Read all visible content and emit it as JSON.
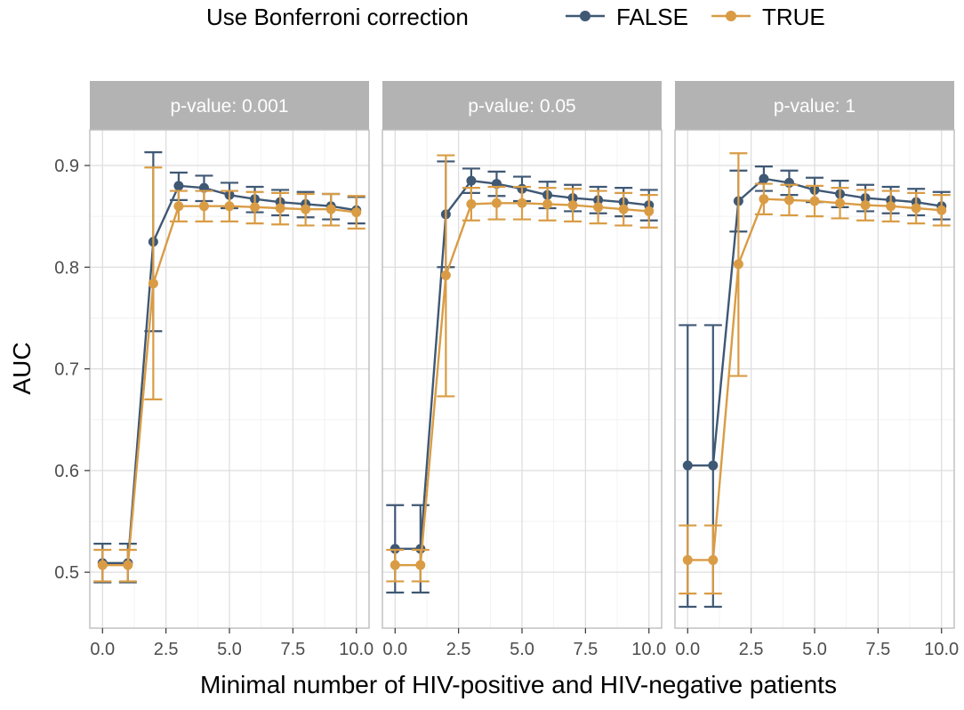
{
  "chart_data": {
    "type": "line",
    "legend": {
      "title": "Use Bonferroni correction",
      "position": "top",
      "entries": [
        {
          "name": "FALSE",
          "color": "#3f5874"
        },
        {
          "name": "TRUE",
          "color": "#d99c45"
        }
      ]
    },
    "xlabel": "Minimal number of HIV-positive and HIV-negative patients",
    "ylabel": "AUC",
    "xlim": [
      -0.5,
      10.5
    ],
    "ylim": [
      0.445,
      0.935
    ],
    "x_ticks": [
      0,
      2.5,
      5,
      7.5,
      10
    ],
    "x_tick_labels": [
      "0.0",
      "2.5",
      "5.0",
      "7.5",
      "10.0"
    ],
    "y_ticks": [
      0.5,
      0.6,
      0.7,
      0.8,
      0.9
    ],
    "y_tick_labels": [
      "0.5",
      "0.6",
      "0.7",
      "0.8",
      "0.9"
    ],
    "grid": true,
    "panels": [
      {
        "title": "p-value: 0.001",
        "series": [
          {
            "name": "FALSE",
            "x": [
              0,
              1,
              2,
              3,
              4,
              5,
              6,
              7,
              8,
              9,
              10
            ],
            "y": [
              0.509,
              0.509,
              0.825,
              0.88,
              0.878,
              0.871,
              0.867,
              0.864,
              0.862,
              0.86,
              0.856
            ],
            "ymin": [
              0.49,
              0.49,
              0.737,
              0.866,
              0.865,
              0.858,
              0.854,
              0.851,
              0.849,
              0.847,
              0.843
            ],
            "ymax": [
              0.528,
              0.528,
              0.913,
              0.893,
              0.89,
              0.883,
              0.879,
              0.876,
              0.874,
              0.872,
              0.869
            ]
          },
          {
            "name": "TRUE",
            "x": [
              0,
              1,
              2,
              3,
              4,
              5,
              6,
              7,
              8,
              9,
              10
            ],
            "y": [
              0.507,
              0.507,
              0.784,
              0.86,
              0.86,
              0.86,
              0.859,
              0.858,
              0.857,
              0.857,
              0.854
            ],
            "ymin": [
              0.491,
              0.491,
              0.67,
              0.845,
              0.845,
              0.845,
              0.843,
              0.842,
              0.841,
              0.841,
              0.838
            ],
            "ymax": [
              0.522,
              0.522,
              0.898,
              0.875,
              0.875,
              0.875,
              0.874,
              0.873,
              0.872,
              0.872,
              0.87
            ]
          }
        ]
      },
      {
        "title": "p-value: 0.05",
        "series": [
          {
            "name": "FALSE",
            "x": [
              0,
              1,
              2,
              3,
              4,
              5,
              6,
              7,
              8,
              9,
              10
            ],
            "y": [
              0.523,
              0.523,
              0.852,
              0.885,
              0.882,
              0.877,
              0.871,
              0.868,
              0.866,
              0.864,
              0.861
            ],
            "ymin": [
              0.48,
              0.48,
              0.8,
              0.873,
              0.87,
              0.865,
              0.858,
              0.855,
              0.853,
              0.85,
              0.846
            ],
            "ymax": [
              0.566,
              0.566,
              0.904,
              0.897,
              0.894,
              0.889,
              0.884,
              0.881,
              0.879,
              0.878,
              0.876
            ]
          },
          {
            "name": "TRUE",
            "x": [
              0,
              1,
              2,
              3,
              4,
              5,
              6,
              7,
              8,
              9,
              10
            ],
            "y": [
              0.507,
              0.507,
              0.792,
              0.862,
              0.863,
              0.863,
              0.862,
              0.861,
              0.859,
              0.857,
              0.855
            ],
            "ymin": [
              0.491,
              0.491,
              0.673,
              0.846,
              0.847,
              0.847,
              0.846,
              0.845,
              0.843,
              0.841,
              0.839
            ],
            "ymax": [
              0.522,
              0.522,
              0.91,
              0.878,
              0.879,
              0.879,
              0.878,
              0.877,
              0.875,
              0.873,
              0.871
            ]
          }
        ]
      },
      {
        "title": "p-value: 1",
        "series": [
          {
            "name": "FALSE",
            "x": [
              0,
              1,
              2,
              3,
              4,
              5,
              6,
              7,
              8,
              9,
              10
            ],
            "y": [
              0.605,
              0.605,
              0.865,
              0.887,
              0.883,
              0.876,
              0.872,
              0.868,
              0.866,
              0.864,
              0.86
            ],
            "ymin": [
              0.466,
              0.466,
              0.835,
              0.875,
              0.871,
              0.864,
              0.859,
              0.855,
              0.853,
              0.851,
              0.847
            ],
            "ymax": [
              0.743,
              0.743,
              0.895,
              0.899,
              0.895,
              0.888,
              0.885,
              0.881,
              0.879,
              0.877,
              0.874
            ]
          },
          {
            "name": "TRUE",
            "x": [
              0,
              1,
              2,
              3,
              4,
              5,
              6,
              7,
              8,
              9,
              10
            ],
            "y": [
              0.512,
              0.512,
              0.803,
              0.867,
              0.866,
              0.865,
              0.863,
              0.861,
              0.86,
              0.858,
              0.856
            ],
            "ymin": [
              0.479,
              0.479,
              0.693,
              0.852,
              0.851,
              0.85,
              0.848,
              0.846,
              0.845,
              0.843,
              0.841
            ],
            "ymax": [
              0.546,
              0.546,
              0.912,
              0.882,
              0.881,
              0.88,
              0.878,
              0.876,
              0.875,
              0.873,
              0.871
            ]
          }
        ]
      }
    ]
  }
}
